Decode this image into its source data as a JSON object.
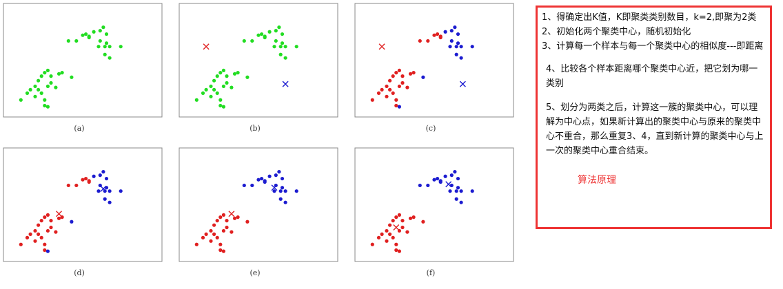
{
  "colors": [
    "#e02020",
    "#1c1cd0",
    "#22dd22"
  ],
  "points": {
    "x": [
      41,
      46,
      50,
      52,
      54,
      57,
      61,
      63,
      65,
      61,
      65,
      64,
      67,
      74,
      60,
      64,
      67,
      54,
      11,
      15,
      20,
      22,
      24,
      26,
      28,
      30,
      35,
      37,
      43,
      22,
      24,
      26,
      26,
      28,
      20,
      17,
      30,
      33,
      28
    ],
    "y": [
      67,
      67,
      72,
      73,
      71,
      75,
      76,
      79,
      73,
      67,
      65,
      62,
      62,
      62,
      62,
      55,
      52,
      70,
      15,
      21,
      27,
      32,
      36,
      39,
      41,
      36,
      38,
      39,
      35,
      24,
      21,
      15,
      10,
      9,
      18,
      24,
      30,
      26,
      27
    ]
  },
  "panels": [
    {
      "label": "(a)",
      "cluster": [
        2,
        2,
        2,
        2,
        2,
        2,
        2,
        2,
        2,
        2,
        2,
        2,
        2,
        2,
        2,
        2,
        2,
        2,
        2,
        2,
        2,
        2,
        2,
        2,
        2,
        2,
        2,
        2,
        2,
        2,
        2,
        2,
        2,
        2,
        2,
        2,
        2,
        2,
        2
      ],
      "centers": []
    },
    {
      "label": "(b)",
      "cluster": [
        2,
        2,
        2,
        2,
        2,
        2,
        2,
        2,
        2,
        2,
        2,
        2,
        2,
        2,
        2,
        2,
        2,
        2,
        2,
        2,
        2,
        2,
        2,
        2,
        2,
        2,
        2,
        2,
        2,
        2,
        2,
        2,
        2,
        2,
        2,
        2,
        2,
        2,
        2
      ],
      "centers": [
        {
          "x": 17,
          "y": 62,
          "cluster": 0
        },
        {
          "x": 67,
          "y": 29,
          "cluster": 1
        }
      ]
    },
    {
      "label": "(c)",
      "cluster": [
        0,
        0,
        0,
        0,
        0,
        1,
        1,
        1,
        1,
        1,
        1,
        1,
        1,
        1,
        1,
        1,
        1,
        0,
        0,
        0,
        0,
        0,
        0,
        0,
        0,
        0,
        0,
        0,
        1,
        0,
        0,
        0,
        0,
        1,
        0,
        0,
        0,
        0,
        0
      ],
      "centers": [
        {
          "x": 17,
          "y": 62,
          "cluster": 0
        },
        {
          "x": 68,
          "y": 29,
          "cluster": 1
        }
      ]
    },
    {
      "label": "(d)",
      "cluster": [
        0,
        0,
        0,
        0,
        0,
        1,
        1,
        1,
        1,
        1,
        1,
        1,
        1,
        1,
        1,
        1,
        1,
        0,
        0,
        0,
        0,
        0,
        0,
        0,
        0,
        0,
        0,
        0,
        1,
        0,
        0,
        0,
        0,
        1,
        0,
        0,
        0,
        0,
        0
      ],
      "centers": [
        {
          "x": 35,
          "y": 42,
          "cluster": 0
        },
        {
          "x": 63,
          "y": 64,
          "cluster": 1
        }
      ]
    },
    {
      "label": "(e)",
      "cluster": [
        1,
        1,
        1,
        1,
        1,
        1,
        1,
        1,
        1,
        1,
        1,
        1,
        1,
        1,
        1,
        1,
        1,
        1,
        0,
        0,
        0,
        0,
        0,
        0,
        0,
        0,
        0,
        0,
        0,
        0,
        0,
        0,
        0,
        0,
        0,
        0,
        0,
        0,
        0
      ],
      "centers": [
        {
          "x": 33,
          "y": 42,
          "cluster": 0
        },
        {
          "x": 60,
          "y": 65,
          "cluster": 1
        }
      ]
    },
    {
      "label": "(f)",
      "cluster": [
        1,
        1,
        1,
        1,
        1,
        1,
        1,
        1,
        1,
        1,
        1,
        1,
        1,
        1,
        1,
        1,
        1,
        1,
        0,
        0,
        0,
        0,
        0,
        0,
        0,
        0,
        0,
        0,
        0,
        0,
        0,
        0,
        0,
        0,
        0,
        0,
        0,
        0,
        0
      ],
      "centers": [
        {
          "x": 26,
          "y": 30,
          "cluster": 0
        },
        {
          "x": 59,
          "y": 68,
          "cluster": 1
        }
      ]
    }
  ],
  "notes": {
    "items": [
      "1、得确定出K值，K即聚类类别数目，k=2,即聚为2类",
      "2、初始化两个聚类中心，随机初始化",
      "3、计算每一个样本与每一个聚类中心的相似度---即距离",
      "4、比较各个样本距离哪个聚类中心近，把它划为哪一类别",
      "5、划分为两类之后，计算这一簇的聚类中心，可以理解为中心点，如果新计算出的聚类中心与原来的聚类中心不重合，那么重复3、4，直到新计算的聚类中心与上一次的聚类中心重合结束。"
    ],
    "caption": "算法原理"
  }
}
